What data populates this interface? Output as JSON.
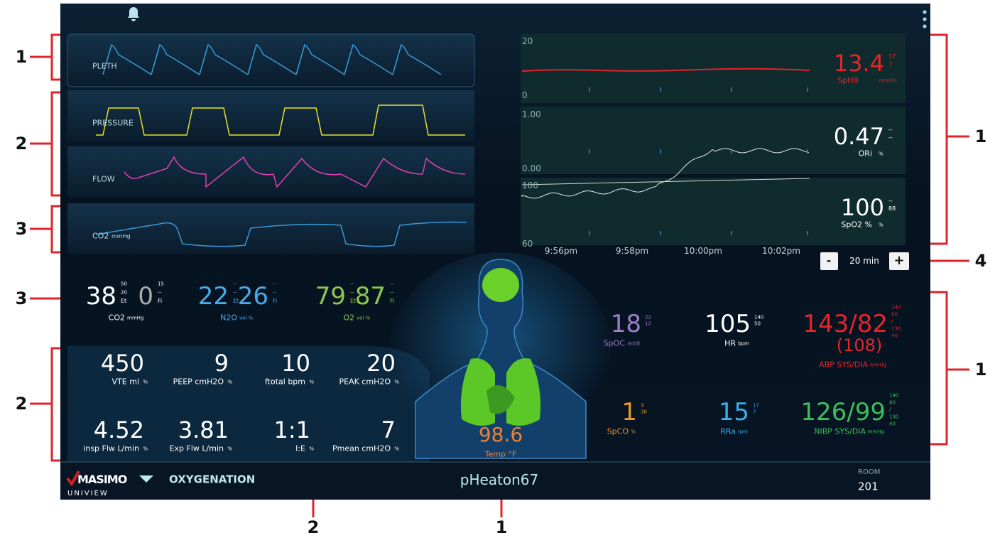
{
  "callouts": {
    "left": [
      "1",
      "2",
      "3",
      "3",
      "2"
    ],
    "right": [
      "1",
      "4",
      "1"
    ],
    "bottom": [
      "2",
      "1"
    ]
  },
  "waveforms": [
    {
      "label": "PLETH"
    },
    {
      "label": "PRESSURE"
    },
    {
      "label": "FLOW"
    },
    {
      "label": "CO2",
      "unit": "mmHg"
    }
  ],
  "trends": [
    {
      "top": "20",
      "bottom": "0",
      "value": "13.4",
      "high": "17",
      "low": "7",
      "label": "SpHB",
      "unit": "mmol/L"
    },
    {
      "top": "1.00",
      "bottom": "0.00",
      "value": "0.47",
      "high": "--",
      "low": "--",
      "label": "ORi",
      "unit": "%"
    },
    {
      "top": "100",
      "bottom": "60",
      "value": "100",
      "high": "--",
      "low": "88",
      "label": "SpO2 %",
      "unit": "%"
    }
  ],
  "trend_times": [
    "9:56pm",
    "9:58pm",
    "10:00pm",
    "10:02pm"
  ],
  "zoom": {
    "minus": "-",
    "span": "20 min",
    "plus": "+"
  },
  "gases": [
    {
      "et": "38",
      "et_high": "50",
      "et_low": "20",
      "et_tag": "Et",
      "fi": "0",
      "fi_high": "15",
      "fi_low": "--",
      "fi_tag": "Fi",
      "label": "CO2",
      "unit": "mmHg"
    },
    {
      "et": "22",
      "et_high": "--",
      "et_low": "--",
      "et_tag": "Et",
      "fi": "26",
      "fi_high": "--",
      "fi_low": "--",
      "fi_tag": "Fi",
      "label": "N2O",
      "unit": "vol %"
    },
    {
      "et": "79",
      "et_high": "--",
      "et_low": "--",
      "et_tag": "Et",
      "fi": "87",
      "fi_high": "--",
      "fi_low": "--",
      "fi_tag": "Fi",
      "label": "O2",
      "unit": "vol %"
    }
  ],
  "vent": [
    {
      "value": "450",
      "label": "VTE ml",
      "unit": "%"
    },
    {
      "value": "9",
      "label": "PEEP cmH2O",
      "unit": "%"
    },
    {
      "value": "10",
      "label": "ftotal bpm",
      "unit": "%"
    },
    {
      "value": "20",
      "label": "PEAK cmH2O",
      "unit": "%"
    },
    {
      "value": "4.52",
      "label": "insp Flw L/min",
      "unit": "%"
    },
    {
      "value": "3.81",
      "label": "Exp Flw L/min",
      "unit": "%"
    },
    {
      "value": "1:1",
      "label": "I:E",
      "unit": "%"
    },
    {
      "value": "7",
      "label": "Pmean cmH2O",
      "unit": "%"
    }
  ],
  "temp": {
    "value": "98.6",
    "label": "Temp °F"
  },
  "params": [
    {
      "value": "18",
      "limits": [
        "22",
        "12"
      ],
      "label": "SpOC",
      "unit": "ml/dl"
    },
    {
      "value": "105",
      "limits": [
        "140",
        "50"
      ],
      "label": "HR",
      "unit": "bpm"
    },
    {
      "value": "143/82",
      "sub": "(108)",
      "limits": [
        "140",
        "80",
        "/",
        "130",
        "40"
      ],
      "label": "ABP SYS/DIA",
      "unit": "mmHg"
    },
    {
      "value": "1",
      "limits": [
        "3",
        "30"
      ],
      "label": "SpCO",
      "unit": "%"
    },
    {
      "value": "15",
      "limits": [
        "17",
        "7"
      ],
      "label": "RRa",
      "unit": "rpm"
    },
    {
      "value": "126/99",
      "limits": [
        "140",
        "80",
        "/",
        "130",
        "40"
      ],
      "label": "NIBP SYS/DIA",
      "unit": "mmHg"
    }
  ],
  "footer": {
    "brand": "MASIMO",
    "product": "UNIVIEW",
    "mode": "OXYGENATION",
    "patient": "pHeaton67",
    "room_label": "ROOM",
    "room": "201"
  }
}
